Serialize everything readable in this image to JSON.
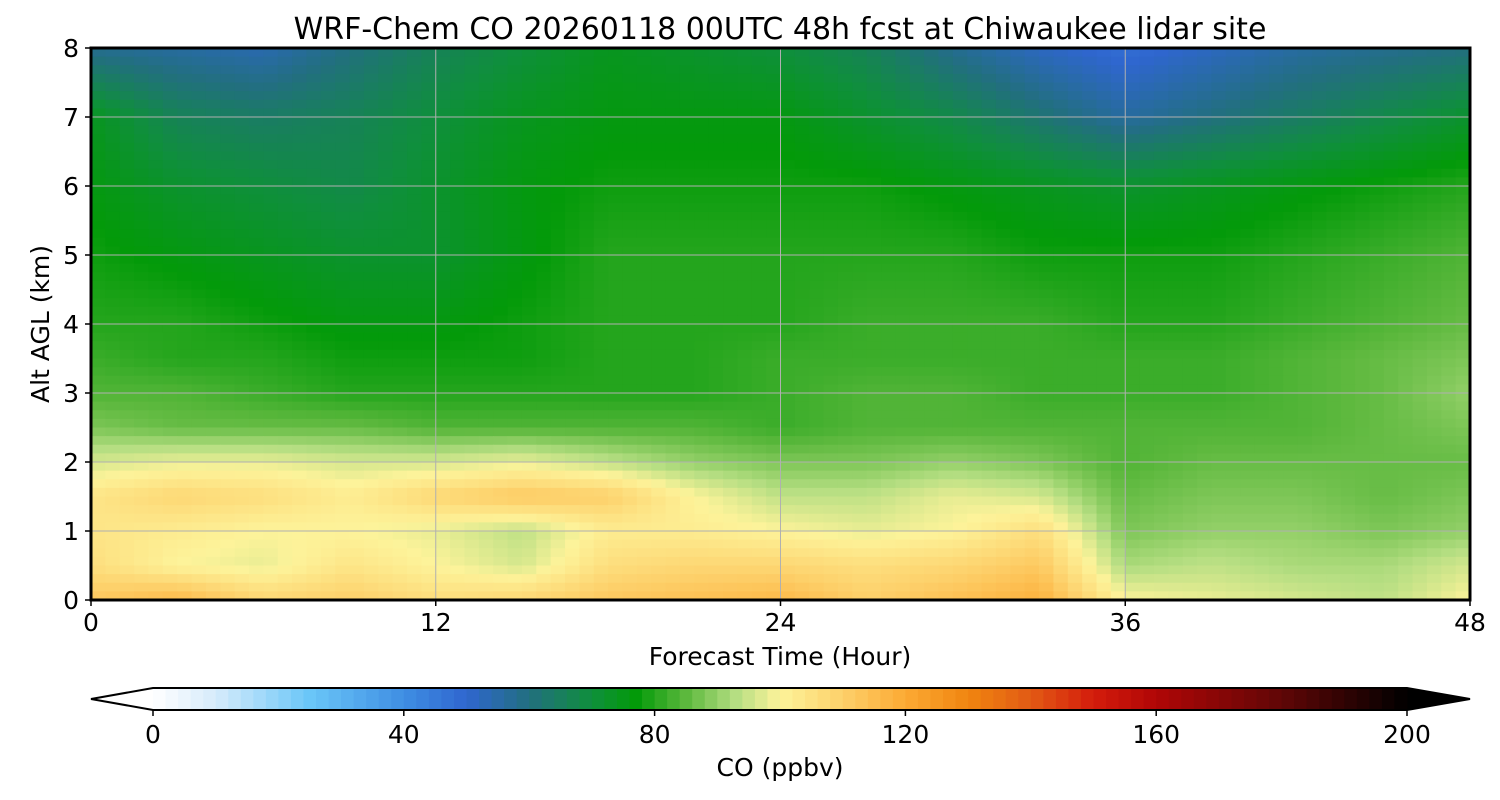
{
  "chart_data": {
    "type": "heatmap",
    "title": "WRF-Chem CO  20260118 00UTC 48h fcst at Chiwaukee lidar site",
    "xlabel": "Forecast Time (Hour)",
    "ylabel": "Alt AGL (km)",
    "xlim": [
      0,
      48
    ],
    "ylim": [
      0,
      8
    ],
    "xticks": [
      0,
      12,
      24,
      36,
      48
    ],
    "yticks": [
      0,
      1,
      2,
      3,
      4,
      5,
      6,
      7,
      8
    ],
    "grid": true,
    "x_hours": [
      0,
      3,
      6,
      9,
      12,
      15,
      18,
      21,
      24,
      27,
      30,
      33,
      36,
      39,
      42,
      45,
      48
    ],
    "altitudes_km": [
      0,
      0.5,
      1,
      1.5,
      2,
      2.5,
      3,
      3.5,
      4,
      5,
      6,
      7,
      8
    ],
    "co_ppbv": [
      [
        112,
        116,
        108,
        110,
        106,
        108,
        112,
        114,
        116,
        110,
        114,
        118,
        100,
        98,
        96,
        94,
        100
      ],
      [
        106,
        100,
        98,
        104,
        100,
        96,
        106,
        108,
        108,
        106,
        108,
        112,
        92,
        94,
        92,
        92,
        96
      ],
      [
        104,
        102,
        100,
        100,
        98,
        94,
        102,
        102,
        100,
        98,
        100,
        106,
        88,
        90,
        90,
        88,
        90
      ],
      [
        104,
        108,
        106,
        102,
        108,
        112,
        110,
        100,
        94,
        94,
        98,
        96,
        86,
        88,
        88,
        86,
        88
      ],
      [
        96,
        98,
        98,
        96,
        96,
        98,
        94,
        90,
        88,
        88,
        90,
        88,
        84,
        86,
        86,
        86,
        86
      ],
      [
        88,
        86,
        86,
        86,
        84,
        84,
        84,
        84,
        82,
        84,
        84,
        84,
        84,
        84,
        84,
        86,
        88
      ],
      [
        84,
        84,
        82,
        80,
        80,
        80,
        80,
        80,
        82,
        84,
        84,
        82,
        82,
        82,
        84,
        86,
        90
      ],
      [
        82,
        80,
        80,
        78,
        78,
        78,
        80,
        80,
        82,
        82,
        82,
        82,
        82,
        82,
        84,
        86,
        88
      ],
      [
        80,
        80,
        78,
        76,
        76,
        78,
        80,
        80,
        80,
        82,
        82,
        82,
        80,
        80,
        82,
        84,
        86
      ],
      [
        78,
        76,
        74,
        72,
        72,
        76,
        80,
        80,
        80,
        80,
        80,
        78,
        78,
        78,
        80,
        82,
        84
      ],
      [
        76,
        72,
        70,
        68,
        72,
        76,
        78,
        78,
        78,
        78,
        76,
        74,
        72,
        74,
        76,
        78,
        80
      ],
      [
        74,
        66,
        64,
        66,
        70,
        74,
        76,
        76,
        76,
        72,
        68,
        62,
        56,
        60,
        64,
        68,
        72
      ],
      [
        58,
        56,
        54,
        60,
        66,
        70,
        74,
        72,
        70,
        66,
        58,
        52,
        48,
        52,
        56,
        58,
        60
      ]
    ],
    "colorbar": {
      "label": "CO  (ppbv)",
      "min": 0,
      "max": 200,
      "ticks": [
        "0",
        "40",
        "80",
        "120",
        "160",
        "200"
      ],
      "extend": "both",
      "stops": [
        {
          "v": 0,
          "c": "#ffffff"
        },
        {
          "v": 10,
          "c": "#d6ebfb"
        },
        {
          "v": 25,
          "c": "#6ac6f8"
        },
        {
          "v": 40,
          "c": "#3f8ee3"
        },
        {
          "v": 50,
          "c": "#2f66cf"
        },
        {
          "v": 60,
          "c": "#226f7f"
        },
        {
          "v": 70,
          "c": "#0f8f3c"
        },
        {
          "v": 77,
          "c": "#039a09"
        },
        {
          "v": 85,
          "c": "#5cb83d"
        },
        {
          "v": 93,
          "c": "#b5de82"
        },
        {
          "v": 100,
          "c": "#fdf39a"
        },
        {
          "v": 110,
          "c": "#fdd06a"
        },
        {
          "v": 120,
          "c": "#fcaa33"
        },
        {
          "v": 130,
          "c": "#f08510"
        },
        {
          "v": 140,
          "c": "#e25a14"
        },
        {
          "v": 150,
          "c": "#d41c0c"
        },
        {
          "v": 160,
          "c": "#b00606"
        },
        {
          "v": 180,
          "c": "#600606"
        },
        {
          "v": 200,
          "c": "#000000"
        }
      ]
    }
  }
}
